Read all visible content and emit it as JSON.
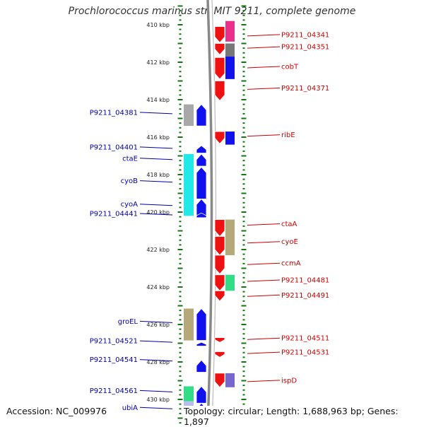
{
  "title": "Prochlorococcus marinus str. MIT 9211, complete genome",
  "footer": {
    "accession": "Accession: NC_009976",
    "topology": "Topology: circular; Length: 1,688,963 bp; Genes: 1,897"
  },
  "colors": {
    "forward_label": "#cc0000",
    "reverse_label": "#0000aa",
    "backbone": "#888888",
    "ticks": "#117711"
  },
  "scale": {
    "unit": "kbp",
    "ticks": [
      {
        "kbp": 410,
        "label": "410 kbp"
      },
      {
        "kbp": 412,
        "label": "412 kbp"
      },
      {
        "kbp": 414,
        "label": "414 kbp"
      },
      {
        "kbp": 416,
        "label": "416 kbp"
      },
      {
        "kbp": 418,
        "label": "418 kbp"
      },
      {
        "kbp": 420,
        "label": "420 kbp"
      },
      {
        "kbp": 422,
        "label": "422 kbp"
      },
      {
        "kbp": 424,
        "label": "424 kbp"
      },
      {
        "kbp": 426,
        "label": "426 kbp"
      },
      {
        "kbp": 428,
        "label": "428 kbp"
      },
      {
        "kbp": 430,
        "label": "430 kbp"
      }
    ]
  },
  "forward_genes": [
    {
      "label": "P9211_04341",
      "start": 410.1,
      "end": 410.95,
      "color": "#ee1111",
      "label_kbp": 410.6
    },
    {
      "label": "P9211_04351",
      "start": 411.0,
      "end": 411.6,
      "color": "#ee1111",
      "label_kbp": 411.25
    },
    {
      "label": "cobT",
      "start": 411.75,
      "end": 412.9,
      "color": "#ee1111",
      "label_kbp": 412.3
    },
    {
      "label": "P9211_04371",
      "start": 413.0,
      "end": 414.05,
      "color": "#ee1111",
      "label_kbp": 413.45
    },
    {
      "label": "ribE",
      "start": 415.7,
      "end": 416.35,
      "color": "#ee1111",
      "label_kbp": 415.95
    },
    {
      "label": "ctaA",
      "start": 420.4,
      "end": 421.3,
      "color": "#ee1111",
      "label_kbp": 420.7
    },
    {
      "label": "cyoE",
      "start": 421.3,
      "end": 422.3,
      "color": "#ee1111",
      "label_kbp": 421.65
    },
    {
      "label": "ccmA",
      "start": 422.3,
      "end": 423.3,
      "color": "#ee1111",
      "label_kbp": 422.8
    },
    {
      "label": "P9211_04481",
      "start": 423.35,
      "end": 424.2,
      "color": "#ee1111",
      "label_kbp": 423.7
    },
    {
      "label": "P9211_04491",
      "start": 424.2,
      "end": 424.75,
      "color": "#ee1111",
      "label_kbp": 424.5
    },
    {
      "label": "P9211_04511",
      "start": 426.7,
      "end": 426.95,
      "color": "#ee1111",
      "label_kbp": 426.8
    },
    {
      "label": "P9211_04531",
      "start": 427.45,
      "end": 427.75,
      "color": "#ee1111",
      "label_kbp": 427.55
    },
    {
      "label": "ispD",
      "start": 428.6,
      "end": 429.35,
      "color": "#ee1111",
      "label_kbp": 429.05
    }
  ],
  "forward_features": [
    {
      "start": 409.8,
      "end": 410.9,
      "color": "#e8308a"
    },
    {
      "start": 411.0,
      "end": 411.7,
      "color": "#777777"
    },
    {
      "start": 411.7,
      "end": 412.9,
      "color": "#1111ee"
    },
    {
      "start": 415.7,
      "end": 416.4,
      "color": "#1111ee"
    },
    {
      "start": 420.4,
      "end": 422.3,
      "color": "#b5a97a"
    },
    {
      "start": 423.35,
      "end": 424.2,
      "color": "#33dd88"
    },
    {
      "start": 428.6,
      "end": 429.35,
      "color": "#7766cc"
    }
  ],
  "reverse_genes": [
    {
      "label": "P9211_04381",
      "start": 414.25,
      "end": 415.4,
      "color": "#1111ee",
      "label_kbp": 414.75
    },
    {
      "label": "P9211_04401",
      "start": 416.45,
      "end": 416.85,
      "color": "#1111ee",
      "label_kbp": 416.6
    },
    {
      "label": "ctaE",
      "start": 416.9,
      "end": 417.55,
      "color": "#1111ee",
      "label_kbp": 417.2
    },
    {
      "label": "cyoB",
      "start": 417.6,
      "end": 419.3,
      "color": "#1111ee",
      "label_kbp": 418.4
    },
    {
      "label": "cyoA",
      "start": 419.3,
      "end": 420.2,
      "color": "#1111ee",
      "label_kbp": 419.65
    },
    {
      "label": "P9211_04441",
      "start": 420.05,
      "end": 420.3,
      "color": "#1111ee",
      "label_kbp": 420.15
    },
    {
      "label": "groEL",
      "start": 425.15,
      "end": 426.85,
      "color": "#1111ee",
      "label_kbp": 425.9
    },
    {
      "label": "P9211_04521",
      "start": 426.95,
      "end": 427.15,
      "color": "#1111ee",
      "label_kbp": 426.95
    },
    {
      "label": "P9211_04541",
      "start": 427.9,
      "end": 428.55,
      "color": "#1111ee",
      "label_kbp": 427.95
    },
    {
      "label": "P9211_04561",
      "start": 429.3,
      "end": 430.2,
      "color": "#1111ee",
      "label_kbp": 429.6
    },
    {
      "label": "ubiA",
      "start": 430.2,
      "end": 431.0,
      "color": "#1111ee",
      "label_kbp": 430.5
    }
  ],
  "reverse_features": [
    {
      "start": 414.25,
      "end": 415.4,
      "color": "#a8a8a8"
    },
    {
      "start": 416.9,
      "end": 420.2,
      "color": "#22e8e8"
    },
    {
      "start": 425.15,
      "end": 426.85,
      "color": "#b5a97a"
    },
    {
      "start": 429.3,
      "end": 430.1,
      "color": "#33dd88"
    },
    {
      "start": 430.1,
      "end": 431.0,
      "color": "#bbbbee"
    }
  ]
}
